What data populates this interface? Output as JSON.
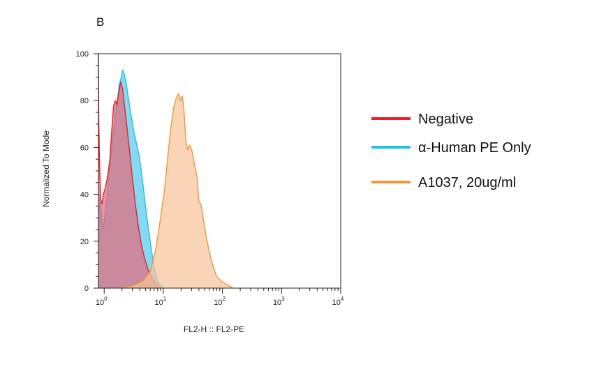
{
  "panel_label": "B",
  "chart_data": {
    "type": "area",
    "title": "",
    "xlabel": "FL2-H :: FL2-PE",
    "ylabel": "Normalized To Mode",
    "x_scale": "log",
    "xlim": [
      0.8,
      10000
    ],
    "ylim": [
      0,
      100
    ],
    "x_ticks": [
      {
        "value": 1,
        "base": "10",
        "exp": "0"
      },
      {
        "value": 10,
        "base": "10",
        "exp": "1"
      },
      {
        "value": 100,
        "base": "10",
        "exp": "2"
      },
      {
        "value": 1000,
        "base": "10",
        "exp": "3"
      },
      {
        "value": 10000,
        "base": "10",
        "exp": "4"
      }
    ],
    "y_ticks": [
      0,
      20,
      40,
      60,
      80,
      100
    ],
    "grid": false,
    "legend_position": "right",
    "series": [
      {
        "name": "α-Human PE Only",
        "color": "#1ec3ea",
        "fill": "#55ccee",
        "x": [
          0.8,
          0.82,
          0.85,
          0.9,
          0.95,
          1.0,
          1.1,
          1.2,
          1.35,
          1.5,
          1.65,
          1.8,
          1.95,
          2.05,
          2.2,
          2.35,
          2.5,
          2.8,
          3.1,
          3.5,
          4.0,
          4.5,
          5.0,
          5.5,
          6.0,
          6.5,
          7.0,
          7.5,
          8.0,
          9.0,
          10.0
        ],
        "values": [
          0,
          30,
          40,
          31,
          25,
          28,
          37,
          49,
          60,
          71,
          79,
          87,
          90,
          93,
          91,
          88,
          83,
          75,
          68,
          62,
          55,
          45,
          35,
          27,
          20,
          14,
          9,
          6,
          3,
          1,
          0
        ]
      },
      {
        "name": "Negative",
        "color": "#e8202a",
        "fill": "#e56a7a",
        "x": [
          0.8,
          0.81,
          0.84,
          0.87,
          0.92,
          0.97,
          1.05,
          1.15,
          1.25,
          1.35,
          1.45,
          1.55,
          1.65,
          1.75,
          1.9,
          2.05,
          2.2,
          2.4,
          2.7,
          3.0,
          3.4,
          3.8,
          4.3,
          4.8,
          5.5,
          6.2,
          7.0,
          8.0,
          9.0
        ],
        "values": [
          100,
          72,
          52,
          38,
          36,
          40,
          43,
          48,
          55,
          68,
          78,
          80,
          78,
          83,
          88,
          85,
          78,
          70,
          58,
          47,
          35,
          26,
          18,
          13,
          8,
          5,
          3,
          1,
          0
        ]
      },
      {
        "name": "A1037, 20ug/ml",
        "color": "#f0963c",
        "fill": "#f7c49a",
        "x": [
          2.0,
          3.0,
          4.5,
          6.0,
          7.5,
          9.0,
          10.5,
          12.0,
          13.5,
          15.0,
          16.5,
          18.0,
          19.5,
          21.0,
          22.5,
          24.0,
          26.0,
          28.0,
          31.0,
          34.0,
          37.0,
          40.0,
          43.0,
          46.0,
          50.0,
          55.0,
          62.0,
          70.0,
          80.0,
          95.0,
          110.0,
          130.0,
          150.0
        ],
        "values": [
          0,
          1,
          3,
          7,
          17,
          30,
          42,
          57,
          69,
          77,
          81,
          83,
          80,
          82,
          75,
          63,
          59,
          61,
          58,
          52,
          48,
          37,
          36,
          32,
          26,
          20,
          14,
          9,
          5,
          3,
          2,
          1,
          0
        ]
      }
    ],
    "legend_order": [
      1,
      0,
      2
    ]
  }
}
